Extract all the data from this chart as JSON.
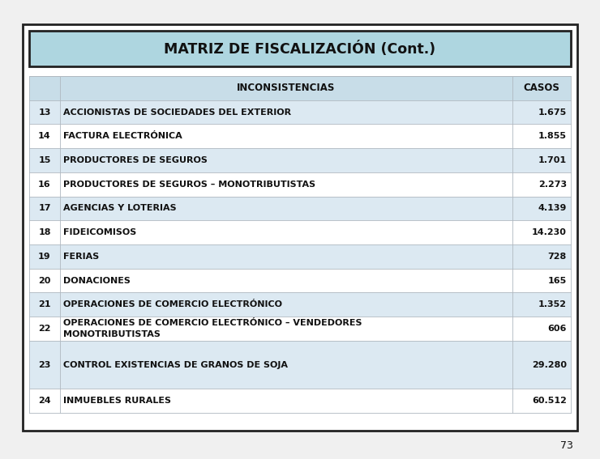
{
  "title": "MATRIZ DE FISCALIZACIÓN (Cont.)",
  "rows": [
    [
      "13",
      "ACCIONISTAS DE SOCIEDADES DEL EXTERIOR",
      "1.675"
    ],
    [
      "14",
      "FACTURA ELECTRÓNICA",
      "1.855"
    ],
    [
      "15",
      "PRODUCTORES DE SEGUROS",
      "1.701"
    ],
    [
      "16",
      "PRODUCTORES DE SEGUROS – MONOTRIBUTISTAS",
      "2.273"
    ],
    [
      "17",
      "AGENCIAS Y LOTERIAS",
      "4.139"
    ],
    [
      "18",
      "FIDEICOMISOS",
      "14.230"
    ],
    [
      "19",
      "FERIAS",
      "728"
    ],
    [
      "20",
      "DONACIONES",
      "165"
    ],
    [
      "21",
      "OPERACIONES DE COMERCIO ELECTRÓNICO",
      "1.352"
    ],
    [
      "22",
      "OPERACIONES DE COMERCIO ELECTRÓNICO – VENDEDORES\nMONOTRIBUTISTAS",
      "606"
    ],
    [
      "23",
      "CONTROL EXISTENCIAS DE GRANOS DE SOJA",
      "29.280"
    ],
    [
      "24",
      "INMUEBLES RURALES",
      "60.512"
    ]
  ],
  "page_number": "73",
  "bg_color": "#f0f0f0",
  "outer_bg": "#ffffff",
  "outer_border_color": "#222222",
  "title_bg": "#aed6e0",
  "title_border": "#222222",
  "header_bg": "#c8dde8",
  "row_bg_light": "#dce9f2",
  "row_bg_white": "#ffffff",
  "line_color": "#b0b8c0",
  "text_color": "#111111",
  "title_fontsize": 12.5,
  "header_fontsize": 8.5,
  "row_fontsize": 8.0,
  "page_fontsize": 9.0
}
